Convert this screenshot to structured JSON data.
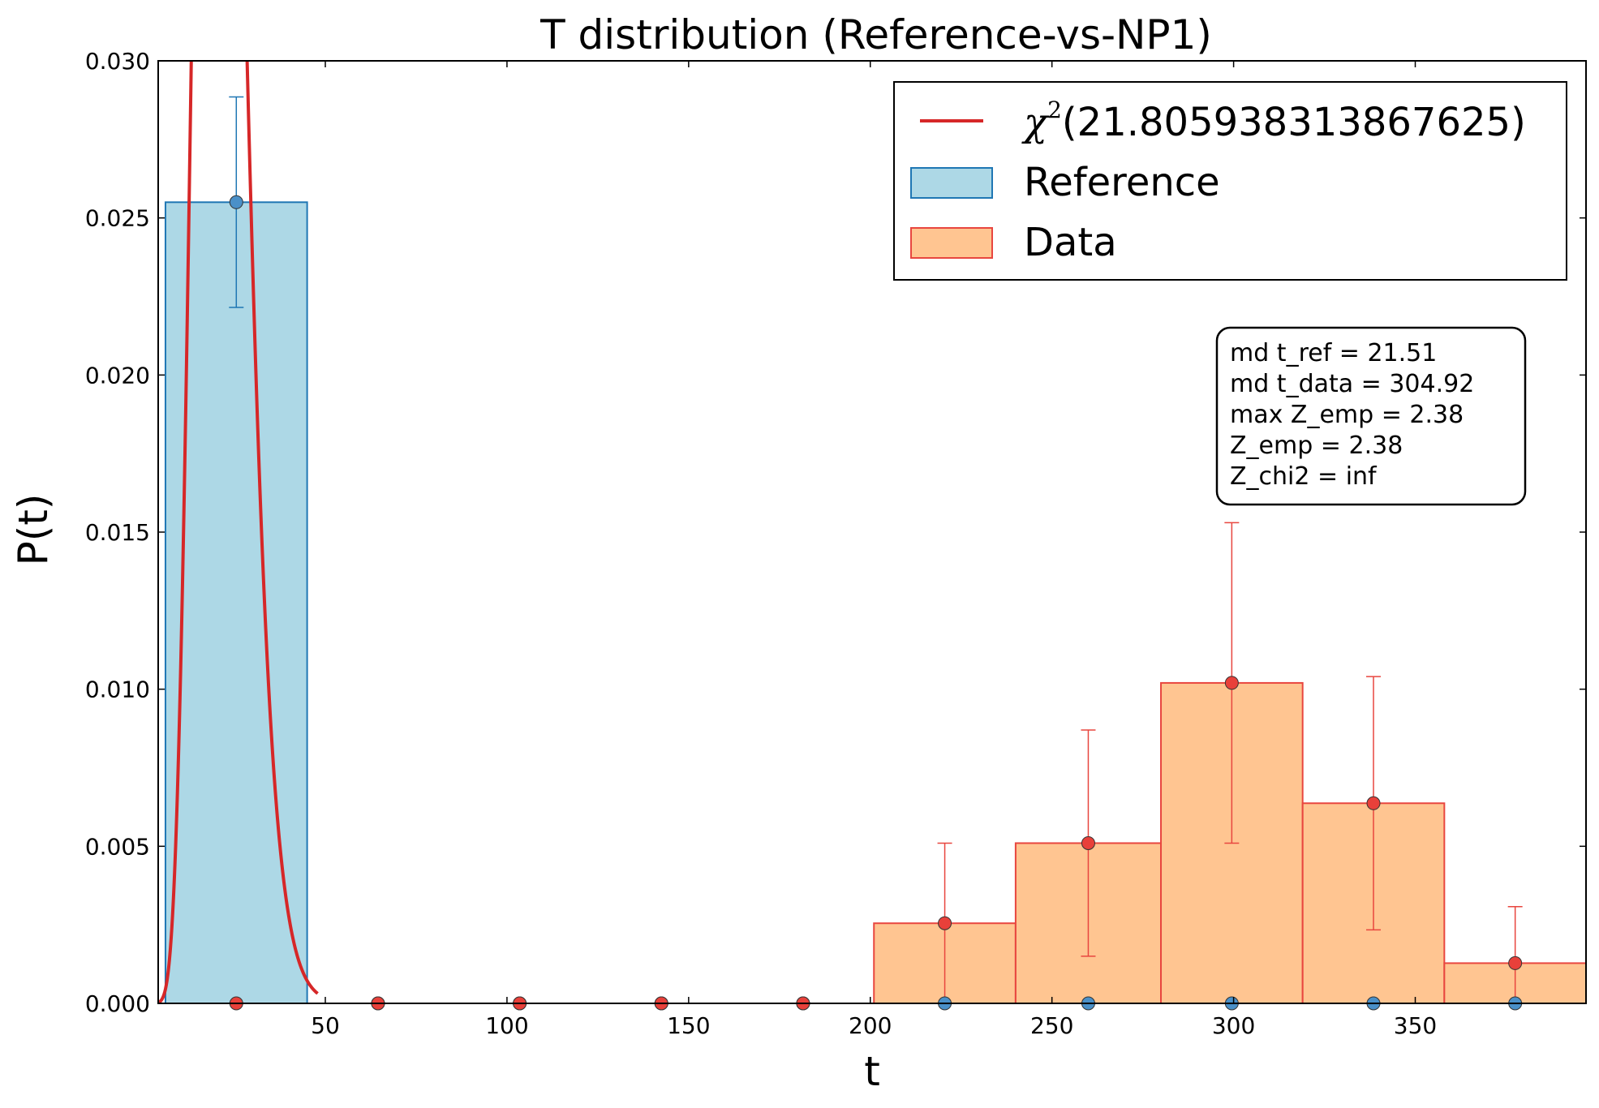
{
  "chart_data": {
    "type": "bar",
    "title": "T distribution (Reference-vs-NP1)",
    "xlabel": "t",
    "ylabel": "P(t)",
    "xlim": [
      4,
      397
    ],
    "ylim": [
      0,
      0.03
    ],
    "xticks": [
      50,
      100,
      150,
      200,
      250,
      300,
      350
    ],
    "yticks": [
      0.0,
      0.005,
      0.01,
      0.015,
      0.02,
      0.025,
      0.03
    ],
    "ytick_labels": [
      "0.000",
      "0.005",
      "0.010",
      "0.015",
      "0.020",
      "0.025",
      "0.030"
    ],
    "grid": false,
    "bin_edges": [
      6,
      45,
      84,
      123,
      162,
      201,
      240,
      280,
      319,
      358,
      397
    ],
    "bin_centers": [
      25.5,
      64.5,
      103.5,
      142.5,
      181.5,
      220.5,
      260,
      299.5,
      338.5,
      377.5
    ],
    "series": [
      {
        "name": "Reference",
        "color": "#add8e6",
        "edge_color": "#1f77b4",
        "values": [
          0.0255,
          0,
          0,
          0,
          0,
          0,
          0,
          0,
          0,
          0
        ],
        "errors": [
          0.00335,
          0,
          0,
          0,
          0,
          0,
          0,
          0,
          0,
          0
        ]
      },
      {
        "name": "Data",
        "color": "#ffc591",
        "edge_color": "#e8463f",
        "values": [
          0,
          0,
          0,
          0,
          0,
          0.00255,
          0.0051,
          0.0102,
          0.00637,
          0.00128
        ],
        "errors": [
          0,
          0,
          0,
          0,
          0,
          0.00255,
          0.0036,
          0.0051,
          0.00403,
          0.0018
        ]
      }
    ],
    "curve": {
      "name": "χ²(21.805938313867625)",
      "dof": 21.805938313867625,
      "color": "#d62728",
      "x_range": [
        4,
        48
      ]
    },
    "legend": {
      "position": "top-right",
      "entries": [
        {
          "type": "line",
          "label_prefix": "χ",
          "label_sup": "2",
          "label_rest": "(21.805938313867625)"
        },
        {
          "type": "patch",
          "label": "Reference"
        },
        {
          "type": "patch",
          "label": "Data"
        }
      ]
    },
    "annotation": [
      "md t_ref = 21.51",
      "md t_data = 304.92",
      "max Z_emp = 2.38",
      "Z_emp = 2.38",
      "Z_chi2 = inf"
    ]
  }
}
